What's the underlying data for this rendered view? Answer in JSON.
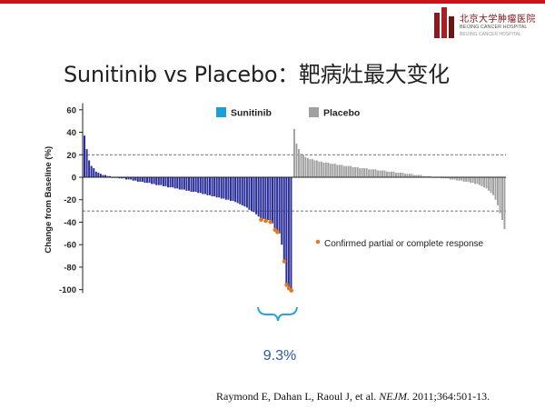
{
  "header": {
    "logo_cn": "北京大学肿瘤医院",
    "logo_en": "BEIJING CANCER HOSPITAL",
    "logo_en2": "BEIJING CANCER HOSPITAL",
    "accent_color": "#c8161d"
  },
  "title": "Sunitinib vs Placebo：靶病灶最大变化",
  "citation": {
    "prefix": "Raymond E, Dahan L, Raoul J, et al. ",
    "journal": "NEJM.",
    "suffix": " 2011;364:501-13."
  },
  "chart_data": {
    "type": "bar",
    "title": "",
    "ylabel": "Change from Baseline (%)",
    "xlabel": "",
    "ylim": [
      -105,
      65
    ],
    "yticks": [
      60,
      40,
      20,
      0,
      -20,
      -40,
      -60,
      -80,
      -100
    ],
    "reference_lines": [
      20,
      -30
    ],
    "grid": false,
    "legend": {
      "position": "top-center",
      "entries": [
        {
          "name": "Sunitinib",
          "color": "#1a9fd6"
        },
        {
          "name": "Placebo",
          "color": "#a0a0a0"
        }
      ]
    },
    "series": [
      {
        "name": "Sunitinib",
        "color": "#2b2f9a",
        "values": [
          37,
          25,
          15,
          10,
          8,
          5,
          4,
          3,
          2,
          2,
          1,
          1,
          0,
          0,
          0,
          -1,
          -1,
          -1,
          -2,
          -2,
          -2,
          -3,
          -3,
          -4,
          -4,
          -4,
          -5,
          -5,
          -5,
          -6,
          -6,
          -7,
          -7,
          -7,
          -8,
          -8,
          -9,
          -9,
          -9,
          -10,
          -10,
          -11,
          -11,
          -11,
          -12,
          -12,
          -13,
          -13,
          -13,
          -14,
          -14,
          -15,
          -15,
          -16,
          -16,
          -17,
          -17,
          -18,
          -18,
          -19,
          -19,
          -20,
          -20,
          -21,
          -21,
          -22,
          -23,
          -24,
          -25,
          -26,
          -27,
          -29,
          -30,
          -31,
          -33,
          -35,
          -37,
          -37,
          -38,
          -38,
          -39,
          -41,
          -46,
          -48,
          -50,
          -60,
          -74,
          -95,
          -98,
          -100
        ]
      },
      {
        "name": "Placebo",
        "color": "#a0a0a0",
        "values": [
          43,
          30,
          25,
          21,
          20,
          18,
          17,
          16,
          16,
          15,
          15,
          14,
          14,
          13,
          13,
          13,
          12,
          12,
          12,
          11,
          11,
          11,
          10,
          10,
          10,
          10,
          9,
          9,
          9,
          8,
          8,
          8,
          8,
          7,
          7,
          7,
          7,
          6,
          6,
          6,
          6,
          5,
          5,
          5,
          5,
          4,
          4,
          4,
          4,
          3,
          3,
          3,
          3,
          2,
          2,
          2,
          2,
          1,
          1,
          1,
          1,
          0,
          0,
          0,
          0,
          -1,
          -1,
          -1,
          -1,
          -2,
          -2,
          -2,
          -3,
          -3,
          -3,
          -4,
          -4,
          -4,
          -5,
          -5,
          -6,
          -6,
          -7,
          -8,
          -9,
          -10,
          -12,
          -14,
          -16,
          -20,
          -25,
          -32,
          -38,
          -46
        ]
      }
    ],
    "responders": {
      "label": "Confirmed partial or complete response",
      "color": "#e07b22",
      "points": [
        {
          "series": "Sunitinib",
          "index": 76,
          "y": -37
        },
        {
          "series": "Sunitinib",
          "index": 78,
          "y": -38
        },
        {
          "series": "Sunitinib",
          "index": 80,
          "y": -39
        },
        {
          "series": "Sunitinib",
          "index": 82,
          "y": -46
        },
        {
          "series": "Sunitinib",
          "index": 83,
          "y": -48
        },
        {
          "series": "Sunitinib",
          "index": 86,
          "y": -74
        },
        {
          "series": "Sunitinib",
          "index": 87,
          "y": -95
        },
        {
          "series": "Sunitinib",
          "index": 88,
          "y": -98
        },
        {
          "series": "Sunitinib",
          "index": 89,
          "y": -100
        }
      ]
    },
    "annotation": {
      "text": "9.3%",
      "color": "#2a59a8",
      "bracket_color": "#2aa5d8"
    }
  }
}
